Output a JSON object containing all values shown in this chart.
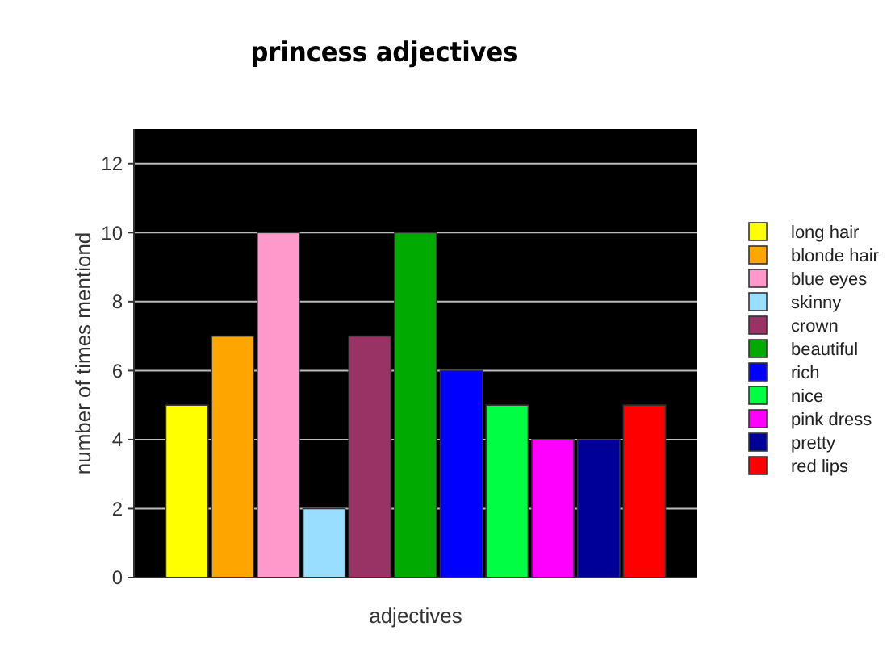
{
  "chart_data": {
    "type": "bar",
    "title": "princess adjectives",
    "xlabel": "adjectives",
    "ylabel": "number of times mentiond",
    "categories": [
      null
    ],
    "series": [
      {
        "name": "long hair",
        "color": "#ffff00",
        "values": [
          5
        ]
      },
      {
        "name": "blonde hair",
        "color": "#ffa500",
        "values": [
          7
        ]
      },
      {
        "name": "blue eyes",
        "color": "#ff99cc",
        "values": [
          10
        ]
      },
      {
        "name": "skinny",
        "color": "#99ddff",
        "values": [
          2
        ]
      },
      {
        "name": "crown",
        "color": "#993366",
        "values": [
          7
        ]
      },
      {
        "name": "beautiful",
        "color": "#00aa00",
        "values": [
          10
        ]
      },
      {
        "name": "rich",
        "color": "#0000ff",
        "values": [
          6
        ]
      },
      {
        "name": "nice",
        "color": "#00ff44",
        "values": [
          5
        ]
      },
      {
        "name": "pink dress",
        "color": "#ff00ff",
        "values": [
          4
        ]
      },
      {
        "name": "pretty",
        "color": "#000099",
        "values": [
          4
        ]
      },
      {
        "name": "red lips",
        "color": "#ff0000",
        "values": [
          5
        ]
      }
    ],
    "ylim": [
      0,
      13
    ],
    "yticks": [
      0,
      2,
      4,
      6,
      8,
      10,
      12
    ],
    "grid": "y",
    "legend": "right"
  }
}
